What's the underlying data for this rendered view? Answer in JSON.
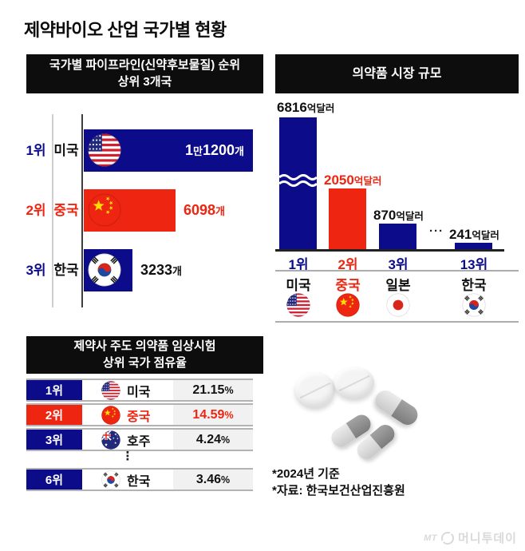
{
  "page": {
    "title": "제약바이오 산업 국가별 현황"
  },
  "colors": {
    "navy": "#0c0c8a",
    "red": "#ee2511",
    "black_text": "#111111",
    "value_cell_bg": "#f1f1f1",
    "header_bg": "#0d0d0d",
    "watermark": "#d9d9d9"
  },
  "chart_data": [
    {
      "type": "bar",
      "orientation": "horizontal",
      "title": "국가별 파이프라인(신약후보물질) 순위",
      "subtitle": "상위 3개국",
      "unit": "개",
      "xlim": [
        0,
        11200
      ],
      "categories": [
        "미국",
        "중국",
        "한국"
      ],
      "values": [
        11200,
        6098,
        3233
      ],
      "rows": [
        {
          "rank": "1위",
          "country": "미국",
          "flag": "us",
          "value": 11200,
          "label_parts": [
            {
              "t": "1",
              "big": true
            },
            {
              "t": "만",
              "big": false
            },
            {
              "t": "1200",
              "big": true
            },
            {
              "t": "개",
              "big": false
            }
          ],
          "bar_color": "#0c0c8a",
          "rank_color": "#0c0c8a",
          "country_color": "#111111",
          "label_color": "#ffffff",
          "label_pos": "inside"
        },
        {
          "rank": "2위",
          "country": "중국",
          "flag": "cn",
          "value": 6098,
          "label_parts": [
            {
              "t": "6098",
              "big": true
            },
            {
              "t": "개",
              "big": false
            }
          ],
          "bar_color": "#ee2511",
          "rank_color": "#ee2511",
          "country_color": "#ee2511",
          "label_color": "#ee2511",
          "label_pos": "outside"
        },
        {
          "rank": "3위",
          "country": "한국",
          "flag": "kr",
          "value": 3233,
          "label_parts": [
            {
              "t": "3233",
              "big": true
            },
            {
              "t": "개",
              "big": false
            }
          ],
          "bar_color": "#0c0c8a",
          "rank_color": "#0c0c8a",
          "country_color": "#111111",
          "label_color": "#111111",
          "label_pos": "outside"
        }
      ]
    },
    {
      "type": "bar",
      "orientation": "vertical",
      "title": "의약품 시장 규모",
      "unit": "억달러",
      "ylim": [
        0,
        6816
      ],
      "axis_break_on_first_bar": true,
      "ellipsis": "···",
      "categories": [
        "미국",
        "중국",
        "일본",
        "한국"
      ],
      "values": [
        6816,
        2050,
        870,
        241
      ],
      "columns": [
        {
          "rank": "1위",
          "country": "미국",
          "flag": "us",
          "value": 6816,
          "label_parts": [
            {
              "t": "6816",
              "big": true
            },
            {
              "t": "억달러",
              "big": false
            }
          ],
          "bar_color": "#0c0c8a",
          "rank_color": "#0c0c8a",
          "country_color": "#111111",
          "label_color": "#111111"
        },
        {
          "rank": "2위",
          "country": "중국",
          "flag": "cn",
          "value": 2050,
          "label_parts": [
            {
              "t": "2050",
              "big": true
            },
            {
              "t": "억달러",
              "big": false
            }
          ],
          "bar_color": "#ee2511",
          "rank_color": "#ee2511",
          "country_color": "#ee2511",
          "label_color": "#ee2511"
        },
        {
          "rank": "3위",
          "country": "일본",
          "flag": "jp",
          "value": 870,
          "label_parts": [
            {
              "t": "870",
              "big": true
            },
            {
              "t": "억달러",
              "big": false
            }
          ],
          "bar_color": "#0c0c8a",
          "rank_color": "#0c0c8a",
          "country_color": "#111111",
          "label_color": "#111111"
        },
        {
          "rank": "13위",
          "country": "한국",
          "flag": "kr",
          "value": 241,
          "label_parts": [
            {
              "t": "241",
              "big": true
            },
            {
              "t": "억달러",
              "big": false
            }
          ],
          "bar_color": "#0c0c8a",
          "rank_color": "#0c0c8a",
          "country_color": "#111111",
          "label_color": "#111111"
        }
      ]
    },
    {
      "type": "table",
      "title": "제약사 주도 의약품 임상시험",
      "subtitle": "상위 국가 점유율",
      "ellipsis": "⋮",
      "rows": [
        {
          "rank": "1위",
          "country": "미국",
          "flag": "us",
          "value_parts": [
            {
              "t": "21.15",
              "big": true
            },
            {
              "t": "%",
              "big": false
            }
          ],
          "rank_bg": "#0c0c8a",
          "text_color": "#111111"
        },
        {
          "rank": "2위",
          "country": "중국",
          "flag": "cn",
          "value_parts": [
            {
              "t": "14.59",
              "big": true
            },
            {
              "t": "%",
              "big": false
            }
          ],
          "rank_bg": "#ee2511",
          "text_color": "#ee2511"
        },
        {
          "rank": "3위",
          "country": "호주",
          "flag": "au",
          "value_parts": [
            {
              "t": "4.24",
              "big": true
            },
            {
              "t": "%",
              "big": false
            }
          ],
          "rank_bg": "#0c0c8a",
          "text_color": "#111111"
        },
        {
          "rank": "6위",
          "country": "한국",
          "flag": "kr",
          "value_parts": [
            {
              "t": "3.46",
              "big": true
            },
            {
              "t": "%",
              "big": false
            }
          ],
          "rank_bg": "#0c0c8a",
          "text_color": "#111111"
        }
      ]
    }
  ],
  "footnotes": {
    "line1": "*2024년 기준",
    "line2": "*자료: 한국보건산업진흥원"
  },
  "watermark": {
    "prefix": "MT",
    "name": "머니투데이"
  }
}
